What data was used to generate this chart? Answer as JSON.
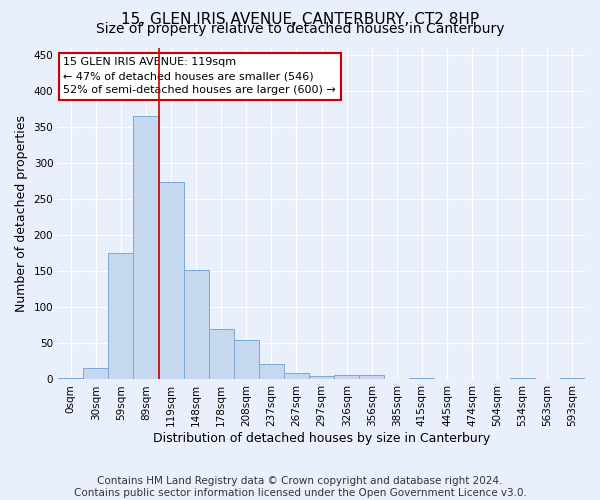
{
  "title": "15, GLEN IRIS AVENUE, CANTERBURY, CT2 8HP",
  "subtitle": "Size of property relative to detached houses in Canterbury",
  "xlabel": "Distribution of detached houses by size in Canterbury",
  "ylabel": "Number of detached properties",
  "bin_labels": [
    "0sqm",
    "30sqm",
    "59sqm",
    "89sqm",
    "119sqm",
    "148sqm",
    "178sqm",
    "208sqm",
    "237sqm",
    "267sqm",
    "297sqm",
    "326sqm",
    "356sqm",
    "385sqm",
    "415sqm",
    "445sqm",
    "474sqm",
    "504sqm",
    "534sqm",
    "563sqm",
    "593sqm"
  ],
  "bar_heights": [
    2,
    16,
    175,
    365,
    273,
    152,
    70,
    54,
    22,
    9,
    5,
    6,
    6,
    0,
    2,
    0,
    0,
    0,
    2,
    0,
    2
  ],
  "bar_color": "#c5d8f0",
  "bar_edge_color": "#7aa8d4",
  "red_line_bin_index": 4,
  "red_line_color": "#cc0000",
  "annotation_text_line1": "15 GLEN IRIS AVENUE: 119sqm",
  "annotation_text_line2": "← 47% of detached houses are smaller (546)",
  "annotation_text_line3": "52% of semi-detached houses are larger (600) →",
  "annotation_box_color": "#ffffff",
  "annotation_box_edge_color": "#cc0000",
  "ylim": [
    0,
    460
  ],
  "yticks": [
    0,
    50,
    100,
    150,
    200,
    250,
    300,
    350,
    400,
    450
  ],
  "footer_line1": "Contains HM Land Registry data © Crown copyright and database right 2024.",
  "footer_line2": "Contains public sector information licensed under the Open Government Licence v3.0.",
  "bg_color": "#eaf0fb",
  "plot_bg_color": "#eaf0fb",
  "grid_color": "#ffffff",
  "title_fontsize": 11,
  "subtitle_fontsize": 10,
  "axis_label_fontsize": 9,
  "tick_fontsize": 7.5,
  "footer_fontsize": 7.5
}
